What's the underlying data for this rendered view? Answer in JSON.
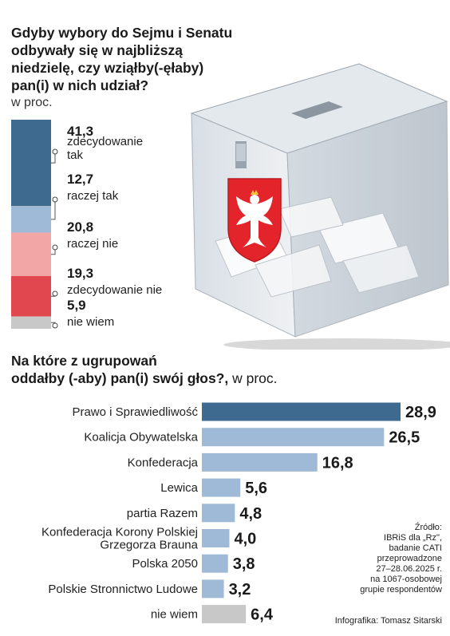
{
  "chart_data": [
    {
      "type": "bar",
      "orientation": "stacked-vertical",
      "title": "Gdyby wybory do Sejmu i Senatu\nodbywały się w najbliższą\nniedzielę, czy wziąłby(-ęłaby)\npan(i) w nich udział?",
      "unit": "w proc.",
      "segments": [
        {
          "label": "zdecydowanie tak",
          "value_label": "41,3",
          "value": 41.3,
          "color": "#3f6a8f"
        },
        {
          "label": "raczej tak",
          "value_label": "12,7",
          "value": 12.7,
          "color": "#9fbad6"
        },
        {
          "label": "raczej nie",
          "value_label": "20,8",
          "value": 20.8,
          "color": "#f2a6a6"
        },
        {
          "label": "zdecydowanie nie",
          "value_label": "19,3",
          "value": 19.3,
          "color": "#e0474f"
        },
        {
          "label": "nie wiem",
          "value_label": "5,9",
          "value": 5.9,
          "color": "#c8c8c8"
        }
      ]
    },
    {
      "type": "bar",
      "orientation": "horizontal",
      "title": "Na które z ugrupowań\noddałby (-aby) pan(i) swój głos?,",
      "unit": " w proc.",
      "xlim": [
        0,
        30
      ],
      "categories": [
        "Prawo i Sprawiedliwość",
        "Koalicja Obywatelska",
        "Konfederacja",
        "Lewica",
        "partia Razem",
        "Konfederacja Korony Polskiej\nGrzegorza Brauna",
        "Polska 2050",
        "Polskie Stronnictwo Ludowe",
        "nie wiem"
      ],
      "values": [
        28.9,
        26.5,
        16.8,
        5.6,
        4.8,
        4.0,
        3.8,
        3.2,
        6.4
      ],
      "value_labels": [
        "28,9",
        "26,5",
        "16,8",
        "5,6",
        "4,8",
        "4,0",
        "3,8",
        "3,2",
        "6,4"
      ],
      "colors": [
        "#3f6a8f",
        "#9fbad6",
        "#9fbad6",
        "#9fbad6",
        "#9fbad6",
        "#9fbad6",
        "#9fbad6",
        "#9fbad6",
        "#c8c8c8"
      ]
    }
  ],
  "source": "Źródło:\nIBRiS dla „Rz\",\nbadanie CATI\nprzeprowadzone\n27–28.06.2025 r.\nna 1067-osobowej\ngrupie respondentów",
  "credit": "Infografika: Tomasz Sitarski"
}
